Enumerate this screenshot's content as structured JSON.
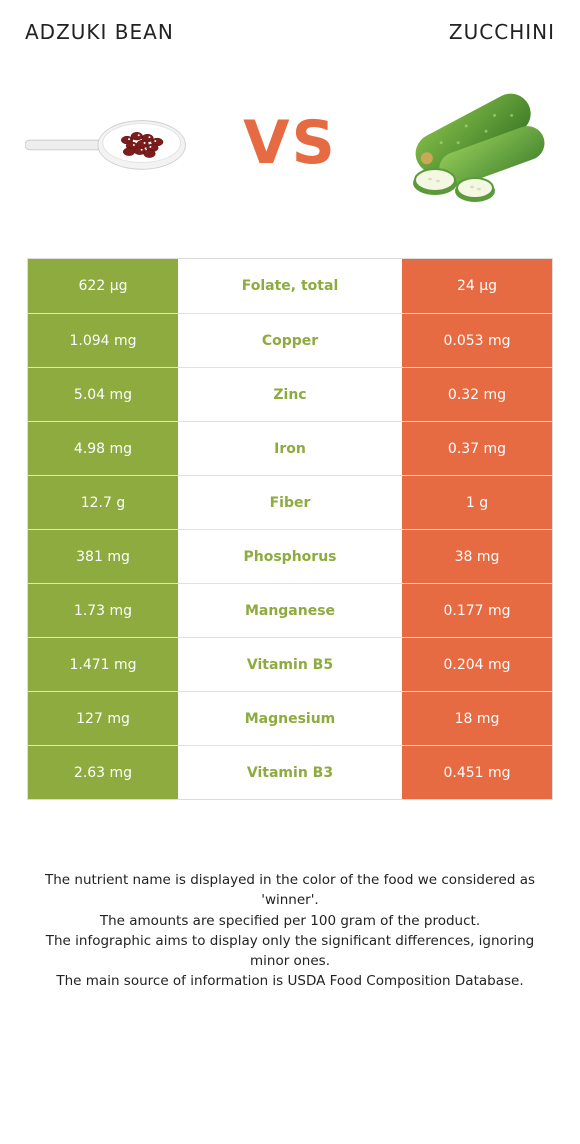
{
  "colors": {
    "left_bg": "#8dab3e",
    "right_bg": "#e66a42",
    "mid_text_winner_left": "#8dab3e",
    "mid_text_winner_right": "#e66a42",
    "value_text": "#ffffff",
    "vs_text": "#e66a42",
    "border": "#dcdcdc"
  },
  "header": {
    "left_title": "Adzuki bean",
    "right_title": "Zucchini",
    "vs_label": "VS"
  },
  "rows": [
    {
      "left": "622 µg",
      "label": "Folate, total",
      "right": "24 µg",
      "winner": "left"
    },
    {
      "left": "1.094 mg",
      "label": "Copper",
      "right": "0.053 mg",
      "winner": "left"
    },
    {
      "left": "5.04 mg",
      "label": "Zinc",
      "right": "0.32 mg",
      "winner": "left"
    },
    {
      "left": "4.98 mg",
      "label": "Iron",
      "right": "0.37 mg",
      "winner": "left"
    },
    {
      "left": "12.7 g",
      "label": "Fiber",
      "right": "1 g",
      "winner": "left"
    },
    {
      "left": "381 mg",
      "label": "Phosphorus",
      "right": "38 mg",
      "winner": "left"
    },
    {
      "left": "1.73 mg",
      "label": "Manganese",
      "right": "0.177 mg",
      "winner": "left"
    },
    {
      "left": "1.471 mg",
      "label": "Vitamin B5",
      "right": "0.204 mg",
      "winner": "left"
    },
    {
      "left": "127 mg",
      "label": "Magnesium",
      "right": "18 mg",
      "winner": "left"
    },
    {
      "left": "2.63 mg",
      "label": "Vitamin B3",
      "right": "0.451 mg",
      "winner": "left"
    }
  ],
  "footer": {
    "lines": [
      "The nutrient name is displayed in the color of the food we considered as 'winner'.",
      "The amounts are specified per 100 gram of the product.",
      "The infographic aims to display only the significant differences, ignoring minor ones.",
      "The main source of information is USDA Food Composition Database."
    ]
  }
}
